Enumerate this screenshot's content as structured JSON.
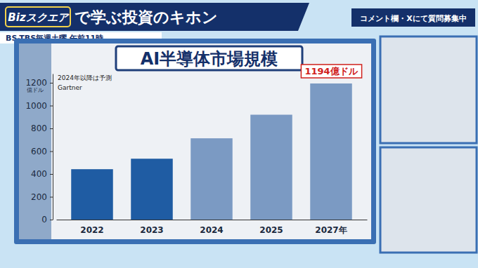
{
  "header": {
    "logo": "Bizスクエア",
    "title": "で学ぶ投資のキホン",
    "program": "BS-TBS毎週土曜 午前11時",
    "notice": "コメント欄・Xにて質問募集中"
  },
  "chart_data": {
    "type": "bar",
    "title": "AI半導体市場規模",
    "y_label": "億ドル",
    "annotations": [
      "2024年以降は予測"
    ],
    "source": "Gartner",
    "categories": [
      "2022",
      "2023",
      "2024",
      "2025",
      "2027年"
    ],
    "values": [
      442,
      534,
      713,
      920,
      1194
    ],
    "value_labels": [
      null,
      null,
      null,
      null,
      "1194億ドル"
    ],
    "data_labels": true,
    "colors": [
      "#1f5ca3",
      "#1f5ca3",
      "#7b9ac3",
      "#7b9ac3",
      "#7b9ac3"
    ],
    "ylim": [
      0,
      1280
    ],
    "yticks": [
      0,
      200,
      400,
      600,
      800,
      1000,
      1200
    ],
    "grid": false
  }
}
